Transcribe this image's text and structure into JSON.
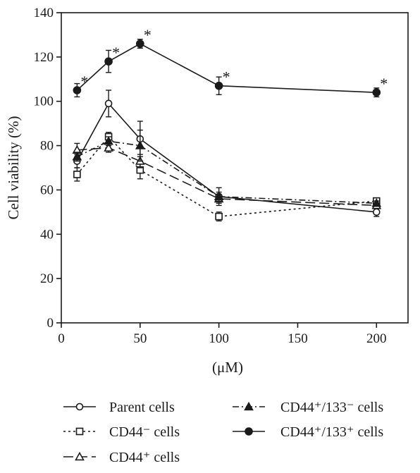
{
  "chart_data": {
    "type": "line",
    "xlabel": "(μM)",
    "ylabel": "Cell viability (%)",
    "xlim": [
      0,
      220
    ],
    "ylim": [
      0,
      140
    ],
    "xticks": [
      0,
      50,
      100,
      150,
      200
    ],
    "yticks": [
      0,
      20,
      40,
      60,
      80,
      100,
      120,
      140
    ],
    "grid": false,
    "legend_position": "bottom",
    "annotations": [
      {
        "text": "*",
        "series": "CD44⁺/133⁺ cells",
        "x": 10
      },
      {
        "text": "*",
        "series": "CD44⁺/133⁺ cells",
        "x": 30
      },
      {
        "text": "*",
        "series": "CD44⁺/133⁺ cells",
        "x": 50
      },
      {
        "text": "*",
        "series": "CD44⁺/133⁺ cells",
        "x": 100
      },
      {
        "text": "*",
        "series": "CD44⁺/133⁺ cells",
        "x": 200
      }
    ],
    "series": [
      {
        "name": "Parent cells",
        "marker": "open-circle",
        "line": "solid",
        "color": "#1a1a1a",
        "x": [
          10,
          30,
          50,
          100,
          200
        ],
        "y": [
          73,
          99,
          83,
          57,
          50
        ],
        "err": [
          3,
          6,
          8,
          4,
          2
        ]
      },
      {
        "name": "CD44⁻ cells",
        "marker": "open-square",
        "line": "dotted",
        "color": "#1a1a1a",
        "x": [
          10,
          30,
          50,
          100,
          200
        ],
        "y": [
          67,
          84,
          69,
          48,
          55
        ],
        "err": [
          3,
          2,
          4,
          2,
          1
        ]
      },
      {
        "name": "CD44⁺ cells",
        "marker": "open-triangle",
        "line": "long-dash",
        "color": "#1a1a1a",
        "x": [
          10,
          30,
          50,
          100,
          200
        ],
        "y": [
          78,
          79,
          73,
          56,
          53
        ],
        "err": [
          3,
          2,
          3,
          2,
          1
        ]
      },
      {
        "name": "CD44⁺/133⁻ cells",
        "marker": "filled-triangle",
        "line": "dash-dot",
        "color": "#1a1a1a",
        "x": [
          10,
          30,
          50,
          100,
          200
        ],
        "y": [
          75,
          82,
          80,
          57,
          54
        ],
        "err": [
          2,
          2,
          7,
          2,
          1
        ]
      },
      {
        "name": "CD44⁺/133⁺ cells",
        "marker": "filled-circle",
        "line": "solid",
        "color": "#1a1a1a",
        "x": [
          10,
          30,
          50,
          100,
          200
        ],
        "y": [
          105,
          118,
          126,
          107,
          104
        ],
        "err": [
          3,
          5,
          2,
          4,
          2
        ]
      }
    ]
  }
}
